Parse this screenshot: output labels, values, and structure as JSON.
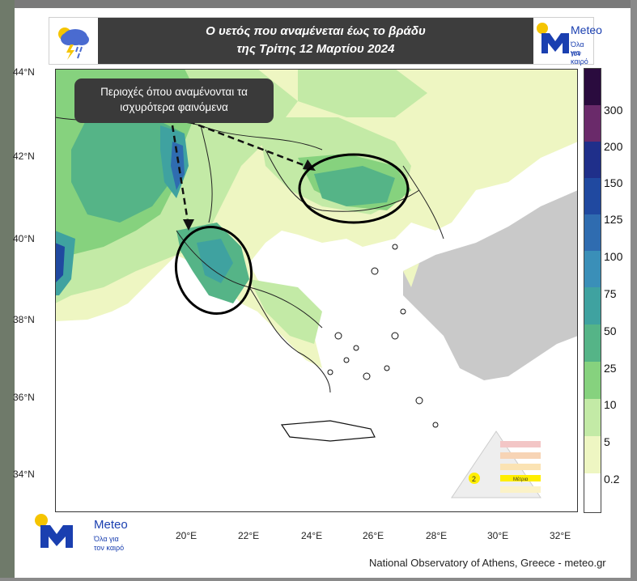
{
  "header": {
    "title_line1": "Ο υετός που αναμένεται έως το βράδυ",
    "title_line2": "της Τρίτης 12 Μαρτίου 2024",
    "icon": "rain-cloud-lightning-icon"
  },
  "brand": {
    "name": "Meteo",
    "tagline_line1": "Όλα για",
    "tagline_line2": "τον καιρό",
    "colors": {
      "blue": "#1a3fb0",
      "yellow": "#f5c400"
    }
  },
  "callout": {
    "line1": "Περιοχές όπου αναμένονται τα",
    "line2": "ισχυρότερα φαινόμενα"
  },
  "axes": {
    "lat_labels": [
      "44°N",
      "42°N",
      "40°N",
      "38°N",
      "36°N",
      "34°N"
    ],
    "lon_labels": [
      "20°E",
      "22°E",
      "24°E",
      "26°E",
      "28°E",
      "30°E",
      "32°E"
    ]
  },
  "colorbar": {
    "unit_hint": "",
    "labels": [
      "300",
      "200",
      "150",
      "125",
      "100",
      "75",
      "50",
      "25",
      "10",
      "5",
      "0.2"
    ],
    "colors": [
      "#2a0b3e",
      "#6a2a6a",
      "#1f2f8a",
      "#2049a0",
      "#2f6cb0",
      "#3a8fb8",
      "#3fa2a0",
      "#55b487",
      "#86d27e",
      "#c3eaa6",
      "#eef6c2",
      "#ffffff"
    ]
  },
  "legend_triangle": {
    "level_active": "2",
    "active_label": "Μέτρια"
  },
  "footer": {
    "credit": "National Observatory of Athens, Greece - meteo.gr"
  }
}
